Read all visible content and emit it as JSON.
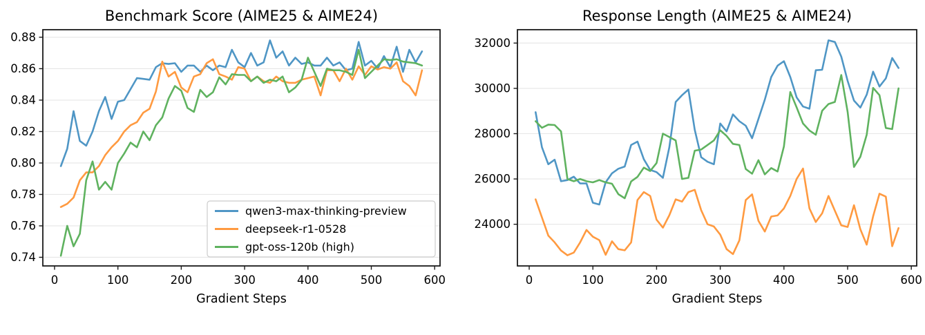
{
  "figure": {
    "background": "#ffffff",
    "grid_color": "#e6e6e6",
    "spine_color": "#1a1a1a",
    "legend_border_color": "#cccccc"
  },
  "chart_data": [
    {
      "type": "line",
      "title": "Benchmark Score (AIME25 & AIME24)",
      "xlabel": "Gradient Steps",
      "ylabel": "",
      "xlim": [
        -18.5,
        608.5
      ],
      "ylim": [
        0.7345,
        0.8848
      ],
      "x_ticks": [
        0,
        100,
        200,
        300,
        400,
        500,
        600
      ],
      "x_tick_labels": [
        "0",
        "100",
        "200",
        "300",
        "400",
        "500",
        "600"
      ],
      "y_ticks": [
        0.74,
        0.76,
        0.78,
        0.8,
        0.82,
        0.84,
        0.86,
        0.88
      ],
      "y_tick_labels": [
        "0.74",
        "0.76",
        "0.78",
        "0.80",
        "0.82",
        "0.84",
        "0.86",
        "0.88"
      ],
      "grid": "y",
      "legend": {
        "show": true,
        "location": "lower right"
      },
      "x": [
        10,
        20,
        30,
        40,
        50,
        60,
        70,
        80,
        90,
        100,
        110,
        120,
        130,
        140,
        150,
        160,
        170,
        180,
        190,
        200,
        210,
        220,
        230,
        240,
        250,
        260,
        270,
        280,
        290,
        300,
        310,
        320,
        330,
        340,
        350,
        360,
        370,
        380,
        390,
        400,
        410,
        420,
        430,
        440,
        450,
        460,
        470,
        480,
        490,
        500,
        510,
        520,
        530,
        540,
        550,
        560,
        570,
        580
      ],
      "series": [
        {
          "name": "qwen3-max-thinking-preview",
          "color": "#4f96c5",
          "values": [
            0.798,
            0.809,
            0.833,
            0.814,
            0.811,
            0.82,
            0.833,
            0.842,
            0.828,
            0.839,
            0.84,
            0.847,
            0.854,
            0.8535,
            0.853,
            0.861,
            0.8635,
            0.863,
            0.8635,
            0.858,
            0.862,
            0.862,
            0.858,
            0.862,
            0.859,
            0.862,
            0.861,
            0.872,
            0.864,
            0.861,
            0.87,
            0.862,
            0.864,
            0.878,
            0.867,
            0.871,
            0.862,
            0.867,
            0.863,
            0.864,
            0.862,
            0.862,
            0.867,
            0.862,
            0.864,
            0.859,
            0.86,
            0.877,
            0.862,
            0.865,
            0.86,
            0.868,
            0.861,
            0.874,
            0.858,
            0.872,
            0.864,
            0.871
          ]
        },
        {
          "name": "deepseek-r1-0528",
          "color": "#ff9a40",
          "values": [
            0.772,
            0.774,
            0.778,
            0.789,
            0.794,
            0.794,
            0.798,
            0.805,
            0.81,
            0.814,
            0.82,
            0.824,
            0.826,
            0.832,
            0.8345,
            0.8455,
            0.8645,
            0.855,
            0.858,
            0.848,
            0.845,
            0.855,
            0.8565,
            0.8635,
            0.866,
            0.8565,
            0.855,
            0.853,
            0.861,
            0.86,
            0.852,
            0.855,
            0.852,
            0.851,
            0.855,
            0.852,
            0.851,
            0.851,
            0.853,
            0.854,
            0.855,
            0.843,
            0.859,
            0.859,
            0.852,
            0.86,
            0.853,
            0.8615,
            0.856,
            0.8615,
            0.8595,
            0.861,
            0.86,
            0.864,
            0.852,
            0.849,
            0.843,
            0.859
          ]
        },
        {
          "name": "gpt-oss-120b (high)",
          "color": "#5fb25f",
          "values": [
            0.741,
            0.76,
            0.747,
            0.755,
            0.789,
            0.801,
            0.783,
            0.788,
            0.783,
            0.8,
            0.806,
            0.813,
            0.81,
            0.82,
            0.8145,
            0.824,
            0.829,
            0.841,
            0.849,
            0.846,
            0.835,
            0.8325,
            0.8465,
            0.842,
            0.845,
            0.8545,
            0.85,
            0.8565,
            0.856,
            0.856,
            0.852,
            0.855,
            0.851,
            0.853,
            0.852,
            0.855,
            0.845,
            0.848,
            0.853,
            0.867,
            0.858,
            0.849,
            0.86,
            0.859,
            0.859,
            0.858,
            0.856,
            0.872,
            0.854,
            0.858,
            0.862,
            0.866,
            0.8655,
            0.866,
            0.8645,
            0.864,
            0.8635,
            0.862
          ]
        }
      ]
    },
    {
      "type": "line",
      "title": "Response Length (AIME25 & AIME24)",
      "xlabel": "Gradient Steps",
      "ylabel": "",
      "xlim": [
        -18.5,
        608.5
      ],
      "ylim": [
        22160,
        32590
      ],
      "x_ticks": [
        0,
        100,
        200,
        300,
        400,
        500,
        600
      ],
      "x_tick_labels": [
        "0",
        "100",
        "200",
        "300",
        "400",
        "500",
        "600"
      ],
      "y_ticks": [
        24000,
        26000,
        28000,
        30000,
        32000
      ],
      "y_tick_labels": [
        "24000",
        "26000",
        "28000",
        "30000",
        "32000"
      ],
      "grid": "y",
      "legend": {
        "show": false
      },
      "x": [
        10,
        20,
        30,
        40,
        50,
        60,
        70,
        80,
        90,
        100,
        110,
        120,
        130,
        140,
        150,
        160,
        170,
        180,
        190,
        200,
        210,
        220,
        230,
        240,
        250,
        260,
        270,
        280,
        290,
        300,
        310,
        320,
        330,
        340,
        350,
        360,
        370,
        380,
        390,
        400,
        410,
        420,
        430,
        440,
        450,
        460,
        470,
        480,
        490,
        500,
        510,
        520,
        530,
        540,
        550,
        560,
        570,
        580
      ],
      "series": [
        {
          "name": "qwen3-max-thinking-preview",
          "color": "#4f96c5",
          "values": [
            28950,
            27400,
            26650,
            26850,
            25900,
            25950,
            26100,
            25800,
            25800,
            24950,
            24870,
            25850,
            26250,
            26450,
            26550,
            27500,
            27650,
            26870,
            26400,
            26300,
            26050,
            27400,
            29400,
            29700,
            29950,
            28170,
            26960,
            26760,
            26650,
            28450,
            28100,
            28850,
            28550,
            28350,
            27800,
            28650,
            29500,
            30500,
            31000,
            31200,
            30500,
            29600,
            29200,
            29100,
            30800,
            30820,
            32120,
            32050,
            31400,
            30330,
            29460,
            29150,
            29720,
            30740,
            30080,
            30440,
            31340,
            30900
          ]
        },
        {
          "name": "deepseek-r1-0528",
          "color": "#ff9a40",
          "values": [
            25100,
            24300,
            23500,
            23200,
            22840,
            22630,
            22750,
            23200,
            23750,
            23450,
            23300,
            22650,
            23250,
            22900,
            22850,
            23200,
            25070,
            25420,
            25250,
            24200,
            23850,
            24400,
            25100,
            25000,
            25420,
            25520,
            24620,
            24000,
            23900,
            23540,
            22900,
            22680,
            23290,
            25070,
            25320,
            24150,
            23680,
            24340,
            24390,
            24700,
            25250,
            26000,
            26460,
            24700,
            24100,
            24480,
            25250,
            24600,
            23950,
            23880,
            24840,
            23780,
            23100,
            24350,
            25350,
            25220,
            23030,
            23830
          ]
        },
        {
          "name": "gpt-oss-120b (high)",
          "color": "#5fb25f",
          "values": [
            28550,
            28260,
            28400,
            28380,
            28100,
            26000,
            25900,
            26000,
            25900,
            25850,
            25950,
            25850,
            25790,
            25330,
            25150,
            25890,
            26090,
            26500,
            26350,
            26700,
            28000,
            27850,
            27700,
            26000,
            26050,
            27250,
            27300,
            27500,
            27700,
            28150,
            27900,
            27550,
            27500,
            26440,
            26230,
            26830,
            26200,
            26480,
            26330,
            27440,
            29840,
            29160,
            28450,
            28140,
            27950,
            29010,
            29310,
            29400,
            30590,
            28960,
            26530,
            26980,
            27950,
            30020,
            29700,
            28250,
            28200,
            30000
          ]
        }
      ]
    }
  ]
}
